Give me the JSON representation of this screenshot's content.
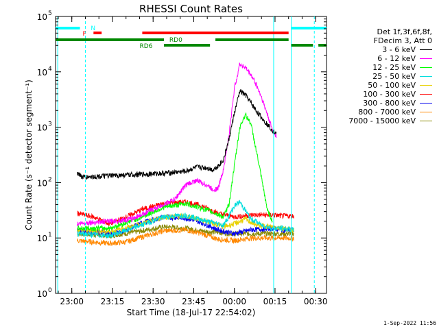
{
  "chart_data": {
    "type": "line",
    "title": "RHESSI Count Rates",
    "xlabel": "Start Time (18-Jul-17 22:54:02)",
    "ylabel": "Count Rate (s⁻¹ detector segment⁻¹)",
    "yscale": "log",
    "ylim": [
      1,
      100000
    ],
    "xlim_minutes_from_2254": [
      0,
      100
    ],
    "x_ticks": [
      {
        "label": "23:00",
        "minute": 6
      },
      {
        "label": "23:15",
        "minute": 21
      },
      {
        "label": "23:30",
        "minute": 36
      },
      {
        "label": "23:45",
        "minute": 51
      },
      {
        "label": "00:00",
        "minute": 66
      },
      {
        "label": "00:15",
        "minute": 81
      },
      {
        "label": "00:30",
        "minute": 96
      }
    ],
    "y_ticks": [
      {
        "label": "10",
        "exp": "0",
        "value": 1
      },
      {
        "label": "10",
        "exp": "1",
        "value": 10
      },
      {
        "label": "10",
        "exp": "2",
        "value": 100
      },
      {
        "label": "10",
        "exp": "3",
        "value": 1000
      },
      {
        "label": "10",
        "exp": "4",
        "value": 10000
      },
      {
        "label": "10",
        "exp": "5",
        "value": 100000
      }
    ],
    "legend_header": [
      "Det 1f,3f,6f,8f,",
      "FDecim 3, Att 0"
    ],
    "series": [
      {
        "name": "3 - 6 keV",
        "color": "#000000",
        "x": [
          8,
          10,
          20,
          30,
          40,
          48,
          52,
          56,
          58,
          60,
          62,
          64,
          66,
          68,
          70,
          72,
          74,
          76,
          78,
          80,
          81.5
        ],
        "y": [
          150,
          125,
          133,
          140,
          148,
          160,
          190,
          185,
          170,
          200,
          260,
          600,
          1800,
          4500,
          3900,
          2800,
          2000,
          1500,
          1150,
          900,
          750
        ]
      },
      {
        "name": "6 - 12 keV",
        "color": "#ff00ff",
        "x": [
          8,
          12,
          20,
          28,
          36,
          44,
          48,
          52,
          56,
          58,
          60,
          62,
          64,
          66,
          68,
          70,
          72,
          74,
          76,
          78,
          80,
          81.5
        ],
        "y": [
          18,
          19,
          20,
          22,
          33,
          50,
          90,
          110,
          90,
          75,
          78,
          180,
          700,
          5000,
          14000,
          12000,
          9000,
          6000,
          3500,
          1800,
          900,
          700
        ]
      },
      {
        "name": "12 - 25 keV",
        "color": "#00ff00",
        "x": [
          8,
          20,
          30,
          40,
          48,
          56,
          62,
          64,
          66,
          68,
          70,
          72,
          74,
          76,
          78,
          80
        ],
        "y": [
          15,
          15,
          22,
          36,
          42,
          32,
          24,
          40,
          200,
          1000,
          1700,
          1200,
          400,
          120,
          35,
          20
        ]
      },
      {
        "name": "25 - 50 keV",
        "color": "#00dddd",
        "x": [
          8,
          20,
          30,
          40,
          48,
          56,
          62,
          64,
          66,
          68,
          70,
          72,
          74,
          76,
          78,
          80,
          84,
          88
        ],
        "y": [
          12,
          11,
          16,
          24,
          26,
          20,
          17,
          25,
          38,
          45,
          32,
          22,
          20,
          17,
          16,
          15,
          15,
          14
        ]
      },
      {
        "name": "50 - 100 keV",
        "color": "#e8d000",
        "x": [
          8,
          20,
          30,
          40,
          48,
          56,
          62,
          66,
          70,
          74,
          80,
          84,
          88
        ],
        "y": [
          14,
          13,
          17,
          24,
          25,
          20,
          16,
          18,
          22,
          17,
          16,
          15,
          14
        ]
      },
      {
        "name": "100 - 300 keV",
        "color": "#ff0000",
        "x": [
          8,
          14,
          20,
          26,
          32,
          40,
          48,
          54,
          60,
          66,
          72,
          80,
          84,
          88
        ],
        "y": [
          28,
          24,
          18,
          24,
          33,
          42,
          45,
          38,
          28,
          24,
          26,
          26,
          25,
          25
        ]
      },
      {
        "name": "300 - 800 keV",
        "color": "#0000ee",
        "x": [
          8,
          14,
          20,
          26,
          32,
          40,
          48,
          54,
          60,
          66,
          72,
          80,
          84,
          88
        ],
        "y": [
          14,
          13,
          12,
          14,
          19,
          24,
          23,
          19,
          14,
          12,
          14,
          15,
          14,
          14
        ]
      },
      {
        "name": "800 - 7000 keV",
        "color": "#ff8800",
        "x": [
          8,
          14,
          20,
          26,
          32,
          40,
          48,
          54,
          60,
          66,
          72,
          80,
          84,
          88
        ],
        "y": [
          9,
          8.5,
          8,
          8.5,
          10.5,
          13.5,
          14,
          12,
          9.5,
          9,
          10,
          10,
          10,
          10
        ]
      },
      {
        "name": "7000 - 15000 keV",
        "color": "#888800",
        "x": [
          8,
          20,
          30,
          40,
          48,
          56,
          66,
          76,
          88
        ],
        "y": [
          12,
          11,
          13,
          16,
          15,
          13,
          12,
          12,
          12
        ]
      }
    ],
    "attenuator_bars": [
      {
        "label": "",
        "color": "#00ffff",
        "row": "top",
        "segments": [
          [
            0,
            9
          ],
          [
            87,
            100
          ]
        ]
      },
      {
        "label": "N",
        "color": "#00ffff",
        "row": "top_label",
        "segments": []
      },
      {
        "label": "F",
        "color": "#ff0000",
        "row": "mid",
        "segments": [
          [
            14,
            17
          ],
          [
            32,
            86
          ]
        ]
      },
      {
        "label": "RD0",
        "color": "#008800",
        "row": "low",
        "segments": [
          [
            0,
            40
          ],
          [
            59,
            86
          ]
        ]
      },
      {
        "label": "RD6",
        "color": "#008800",
        "row": "lower",
        "segments": [
          [
            40,
            57
          ],
          [
            87,
            95
          ],
          [
            97,
            100
          ]
        ]
      }
    ],
    "vertical_lines": [
      {
        "minute": 0.8,
        "color": "#00ffff",
        "style": "solid"
      },
      {
        "minute": 11,
        "color": "#00ffff",
        "style": "dashed"
      },
      {
        "minute": 80.5,
        "color": "#00ffff",
        "style": "solid"
      },
      {
        "minute": 87,
        "color": "#00ffff",
        "style": "solid"
      },
      {
        "minute": 95.5,
        "color": "#00ffff",
        "style": "dashed"
      }
    ],
    "background": "#ffffff"
  },
  "footer_stamp": "1-Sep-2022 11:56"
}
